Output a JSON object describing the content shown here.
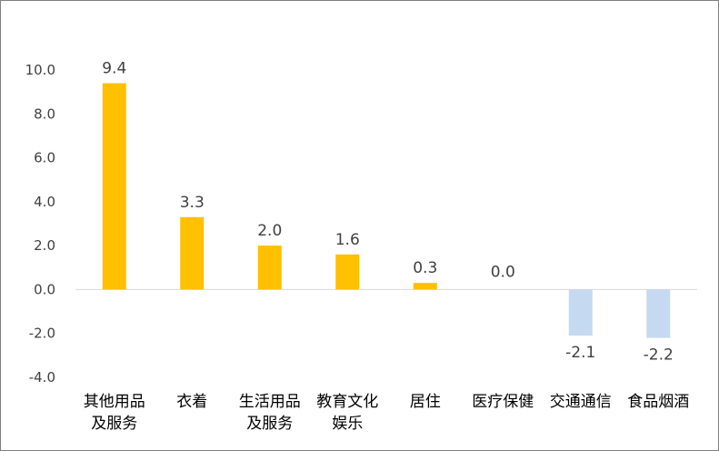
{
  "chart_data": {
    "type": "bar",
    "title": "",
    "xlabel": "",
    "ylabel": "",
    "categories": [
      [
        "其他用品",
        "及服务"
      ],
      [
        "衣着"
      ],
      [
        "生活用品",
        "及服务"
      ],
      [
        "教育文化",
        "娱乐"
      ],
      [
        "居住"
      ],
      [
        "医疗保健"
      ],
      [
        "交通通信"
      ],
      [
        "食品烟酒"
      ]
    ],
    "values": [
      9.4,
      3.3,
      2.0,
      1.6,
      0.3,
      0.0,
      -2.1,
      -2.2
    ],
    "data_labels": [
      "9.4",
      "3.3",
      "2.0",
      "1.6",
      "0.3",
      "0.0",
      "-2.1",
      "-2.2"
    ],
    "ylim": [
      -4.0,
      10.0
    ],
    "yticks": [
      10.0,
      8.0,
      6.0,
      4.0,
      2.0,
      0.0,
      -2.0,
      -4.0
    ],
    "ytick_labels": [
      "10.0",
      "8.0",
      "6.0",
      "4.0",
      "2.0",
      "0.0",
      "-2.0",
      "-4.0"
    ],
    "grid": false,
    "legend": "none",
    "colors": {
      "positive": "#ffc000",
      "negative": "#c5d9f1"
    }
  }
}
